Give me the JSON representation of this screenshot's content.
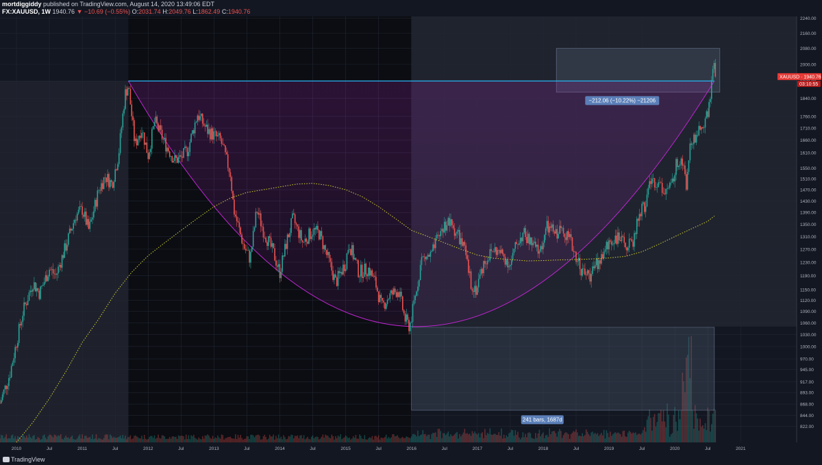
{
  "header": {
    "author": "mortdiggiddy",
    "published_text": "published on TradingView.com, August 14, 2020 13:49:06 EDT",
    "symbol": "FX:XAUUSD, 1W",
    "last": "1940.76",
    "change_arrow": "▼",
    "change": "−10.69 (−0.55%)",
    "o_label": "O:",
    "o_value": "2031.74",
    "h_label": "H:",
    "h_value": "2049.76",
    "l_label": "L:",
    "l_value": "1862.49",
    "c_label": "C:",
    "c_value": "1940.76"
  },
  "footer": {
    "brand": "TradingView"
  },
  "chart_data": {
    "type": "candlestick",
    "symbol": "XAUUSD",
    "interval": "1W",
    "x_range": [
      2009.75,
      2021.85
    ],
    "y_range": [
      790,
      2250
    ],
    "y_ticks": [
      822,
      844,
      868,
      893,
      917,
      945,
      970,
      1000,
      1030,
      1060,
      1090,
      1120,
      1150,
      1190,
      1230,
      1270,
      1310,
      1350,
      1390,
      1430,
      1470,
      1510,
      1550,
      1610,
      1660,
      1710,
      1760,
      1840,
      1920,
      2000,
      2080,
      2160,
      2240
    ],
    "y_tick_labels": [
      "822.00",
      "844.00",
      "868.00",
      "893.00",
      "917.00",
      "945.00",
      "970.00",
      "1000.00",
      "1030.00",
      "1060.00",
      "1090.00",
      "1120.00",
      "1150.00",
      "1190.00",
      "1230.00",
      "1270.00",
      "1310.00",
      "1350.00",
      "1390.00",
      "1430.00",
      "1470.00",
      "1510.00",
      "1550.00",
      "1610.00",
      "1660.00",
      "1710.00",
      "1760.00",
      "1840.00",
      "1920.00",
      "2000.00",
      "2080.00",
      "2160.00",
      "2240.00"
    ],
    "x_ticks": [
      {
        "x": 2009.5,
        "label": "Jul"
      },
      {
        "x": 2010.0,
        "label": "2010"
      },
      {
        "x": 2010.5,
        "label": "Jul"
      },
      {
        "x": 2011.0,
        "label": "2011"
      },
      {
        "x": 2011.5,
        "label": "Jul"
      },
      {
        "x": 2012.0,
        "label": "2012"
      },
      {
        "x": 2012.5,
        "label": "Jul"
      },
      {
        "x": 2013.0,
        "label": "2013"
      },
      {
        "x": 2013.5,
        "label": "Jul"
      },
      {
        "x": 2014.0,
        "label": "2014"
      },
      {
        "x": 2014.5,
        "label": "Jul"
      },
      {
        "x": 2015.0,
        "label": "2015"
      },
      {
        "x": 2015.5,
        "label": "Jul"
      },
      {
        "x": 2016.0,
        "label": "2016"
      },
      {
        "x": 2016.5,
        "label": "Jul"
      },
      {
        "x": 2017.0,
        "label": "2017"
      },
      {
        "x": 2017.5,
        "label": "Jul"
      },
      {
        "x": 2018.0,
        "label": "2018"
      },
      {
        "x": 2018.5,
        "label": "Jul"
      },
      {
        "x": 2019.0,
        "label": "2019"
      },
      {
        "x": 2019.5,
        "label": "Jul"
      },
      {
        "x": 2020.0,
        "label": "2020"
      },
      {
        "x": 2020.5,
        "label": "Jul"
      },
      {
        "x": 2021.0,
        "label": "2021"
      }
    ],
    "price_path": [
      [
        2009.75,
        870
      ],
      [
        2009.9,
        935
      ],
      [
        2010.0,
        1010
      ],
      [
        2010.1,
        1090
      ],
      [
        2010.25,
        1170
      ],
      [
        2010.35,
        1140
      ],
      [
        2010.5,
        1210
      ],
      [
        2010.6,
        1190
      ],
      [
        2010.75,
        1280
      ],
      [
        2010.9,
        1380
      ],
      [
        2011.0,
        1400
      ],
      [
        2011.1,
        1330
      ],
      [
        2011.25,
        1470
      ],
      [
        2011.35,
        1520
      ],
      [
        2011.45,
        1490
      ],
      [
        2011.55,
        1600
      ],
      [
        2011.65,
        1860
      ],
      [
        2011.7,
        1900
      ],
      [
        2011.8,
        1640
      ],
      [
        2011.9,
        1710
      ],
      [
        2012.0,
        1600
      ],
      [
        2012.1,
        1740
      ],
      [
        2012.25,
        1650
      ],
      [
        2012.4,
        1580
      ],
      [
        2012.5,
        1590
      ],
      [
        2012.6,
        1620
      ],
      [
        2012.75,
        1770
      ],
      [
        2012.9,
        1700
      ],
      [
        2013.0,
        1680
      ],
      [
        2013.1,
        1660
      ],
      [
        2013.25,
        1530
      ],
      [
        2013.3,
        1400
      ],
      [
        2013.45,
        1280
      ],
      [
        2013.55,
        1240
      ],
      [
        2013.65,
        1400
      ],
      [
        2013.75,
        1330
      ],
      [
        2013.9,
        1260
      ],
      [
        2014.0,
        1200
      ],
      [
        2014.1,
        1290
      ],
      [
        2014.2,
        1370
      ],
      [
        2014.35,
        1290
      ],
      [
        2014.5,
        1330
      ],
      [
        2014.6,
        1320
      ],
      [
        2014.75,
        1230
      ],
      [
        2014.85,
        1170
      ],
      [
        2015.0,
        1230
      ],
      [
        2015.05,
        1290
      ],
      [
        2015.2,
        1200
      ],
      [
        2015.35,
        1210
      ],
      [
        2015.45,
        1170
      ],
      [
        2015.55,
        1100
      ],
      [
        2015.65,
        1130
      ],
      [
        2015.8,
        1150
      ],
      [
        2015.9,
        1070
      ],
      [
        2015.97,
        1050
      ],
      [
        2016.05,
        1120
      ],
      [
        2016.15,
        1240
      ],
      [
        2016.3,
        1250
      ],
      [
        2016.45,
        1330
      ],
      [
        2016.55,
        1360
      ],
      [
        2016.7,
        1320
      ],
      [
        2016.8,
        1270
      ],
      [
        2016.9,
        1170
      ],
      [
        2016.98,
        1150
      ],
      [
        2017.1,
        1230
      ],
      [
        2017.25,
        1270
      ],
      [
        2017.4,
        1250
      ],
      [
        2017.5,
        1220
      ],
      [
        2017.6,
        1290
      ],
      [
        2017.7,
        1320
      ],
      [
        2017.85,
        1280
      ],
      [
        2017.95,
        1260
      ],
      [
        2018.05,
        1340
      ],
      [
        2018.2,
        1320
      ],
      [
        2018.3,
        1340
      ],
      [
        2018.4,
        1300
      ],
      [
        2018.5,
        1250
      ],
      [
        2018.6,
        1200
      ],
      [
        2018.7,
        1190
      ],
      [
        2018.8,
        1220
      ],
      [
        2018.9,
        1250
      ],
      [
        2019.0,
        1290
      ],
      [
        2019.1,
        1310
      ],
      [
        2019.2,
        1290
      ],
      [
        2019.35,
        1280
      ],
      [
        2019.45,
        1380
      ],
      [
        2019.55,
        1420
      ],
      [
        2019.65,
        1510
      ],
      [
        2019.75,
        1490
      ],
      [
        2019.85,
        1470
      ],
      [
        2019.95,
        1480
      ],
      [
        2020.0,
        1550
      ],
      [
        2020.1,
        1600
      ],
      [
        2020.18,
        1480
      ],
      [
        2020.22,
        1620
      ],
      [
        2020.35,
        1700
      ],
      [
        2020.45,
        1730
      ],
      [
        2020.52,
        1810
      ],
      [
        2020.58,
        1970
      ],
      [
        2020.61,
        2040
      ],
      [
        2020.62,
        1940
      ]
    ],
    "ma_path": [
      [
        2010.0,
        790
      ],
      [
        2010.25,
        830
      ],
      [
        2010.5,
        880
      ],
      [
        2010.75,
        940
      ],
      [
        2011.0,
        1010
      ],
      [
        2011.25,
        1070
      ],
      [
        2011.5,
        1140
      ],
      [
        2011.75,
        1200
      ],
      [
        2012.0,
        1250
      ],
      [
        2012.25,
        1290
      ],
      [
        2012.5,
        1330
      ],
      [
        2012.75,
        1370
      ],
      [
        2013.0,
        1410
      ],
      [
        2013.25,
        1440
      ],
      [
        2013.5,
        1460
      ],
      [
        2013.75,
        1470
      ],
      [
        2014.0,
        1480
      ],
      [
        2014.25,
        1490
      ],
      [
        2014.5,
        1493
      ],
      [
        2014.75,
        1485
      ],
      [
        2015.0,
        1470
      ],
      [
        2015.25,
        1445
      ],
      [
        2015.5,
        1410
      ],
      [
        2015.75,
        1370
      ],
      [
        2016.0,
        1330
      ],
      [
        2016.25,
        1310
      ],
      [
        2016.5,
        1290
      ],
      [
        2016.75,
        1270
      ],
      [
        2017.0,
        1252
      ],
      [
        2017.25,
        1242
      ],
      [
        2017.5,
        1238
      ],
      [
        2017.75,
        1234
      ],
      [
        2018.0,
        1235
      ],
      [
        2018.25,
        1237
      ],
      [
        2018.5,
        1238
      ],
      [
        2018.75,
        1240
      ],
      [
        2019.0,
        1243
      ],
      [
        2019.25,
        1248
      ],
      [
        2019.5,
        1262
      ],
      [
        2019.75,
        1285
      ],
      [
        2020.0,
        1310
      ],
      [
        2020.25,
        1335
      ],
      [
        2020.5,
        1360
      ],
      [
        2020.6,
        1378
      ]
    ],
    "annotations": {
      "resistance_price": 1920,
      "resistance_x": [
        2011.7,
        2020.6
      ],
      "cup_bottom_price": 1050,
      "cup_bottom_x": 2016.0,
      "measure_label": "−212.06 (−10.22%) −21206",
      "bars_label": "241 bars, 1687d",
      "price_tag_symbol": "XAUUSD",
      "price_tag_value": "1940.76",
      "countdown": "03:10:55"
    }
  }
}
